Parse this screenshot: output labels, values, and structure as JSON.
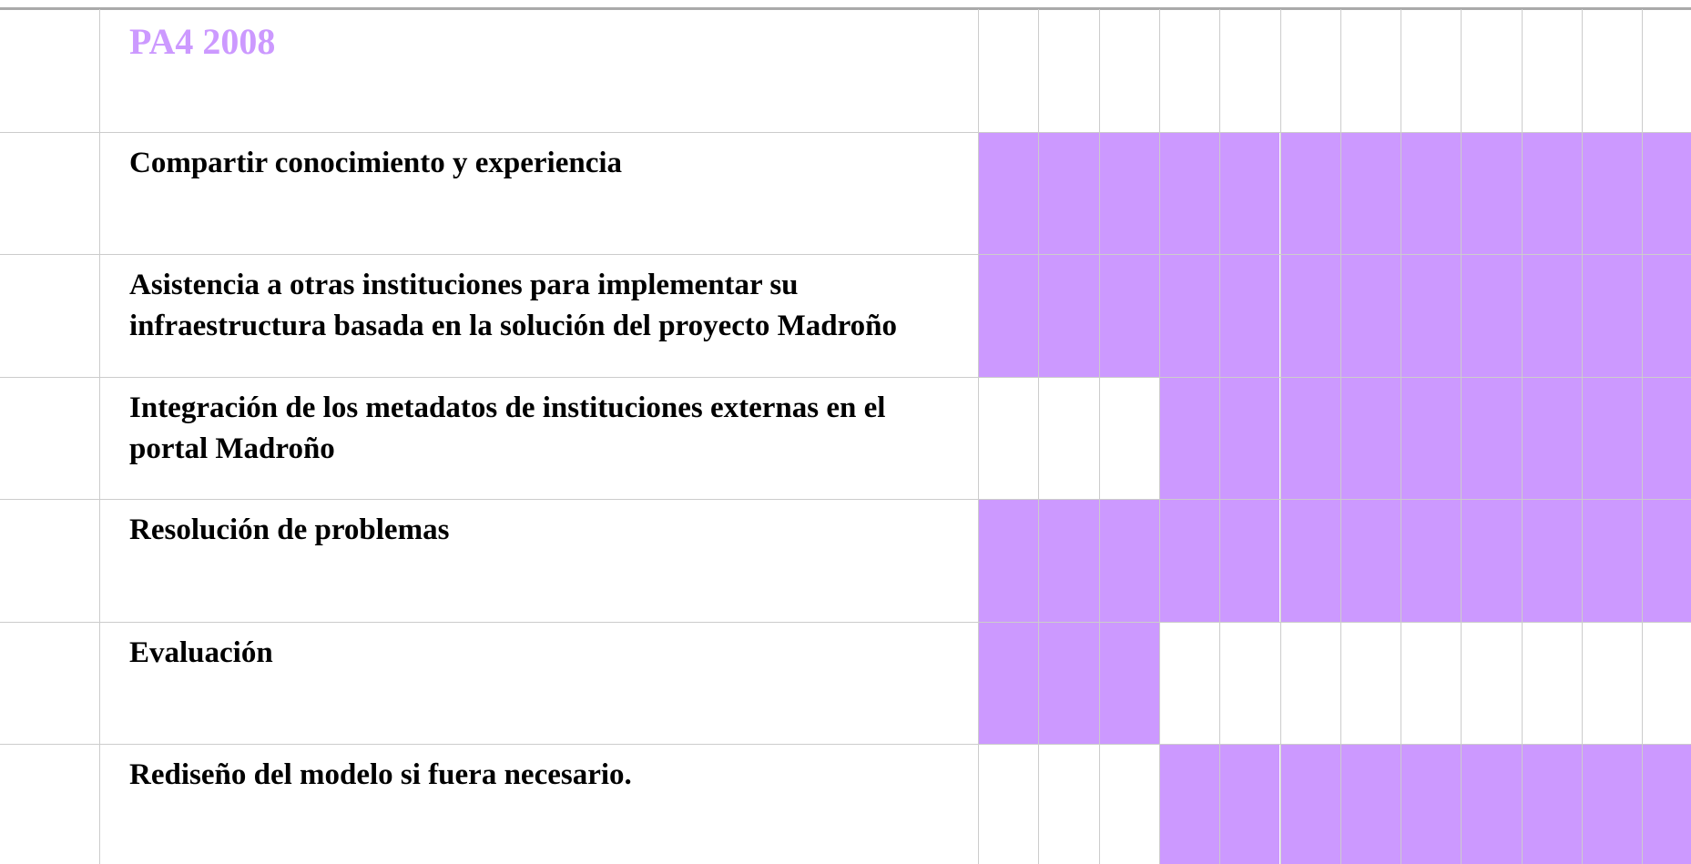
{
  "table": {
    "title": "PA4 2008",
    "title_color": "#cc99ff",
    "fill_color": "#cc99ff",
    "rows": [
      {
        "label": "Compartir conocimiento y experiencia",
        "cells": [
          true,
          true,
          true,
          true,
          true,
          true,
          true,
          true,
          true,
          true,
          true,
          true
        ]
      },
      {
        "label": "Asistencia a otras instituciones para implementar su infraestructura basada en la solución del proyecto Madroño",
        "cells": [
          true,
          true,
          true,
          true,
          true,
          true,
          true,
          true,
          true,
          true,
          true,
          true
        ]
      },
      {
        "label": "Integración de los metadatos de instituciones externas en el portal Madroño",
        "cells": [
          false,
          false,
          false,
          true,
          true,
          true,
          true,
          true,
          true,
          true,
          true,
          true
        ]
      },
      {
        "label": "Resolución de problemas",
        "cells": [
          true,
          true,
          true,
          true,
          true,
          true,
          true,
          true,
          true,
          true,
          true,
          true
        ]
      },
      {
        "label": "Evaluación",
        "cells": [
          true,
          true,
          true,
          false,
          false,
          false,
          false,
          false,
          false,
          false,
          false,
          false
        ]
      },
      {
        "label": "Rediseño del modelo si fuera necesario.",
        "cells": [
          false,
          false,
          false,
          true,
          true,
          true,
          true,
          true,
          true,
          true,
          true,
          true
        ]
      }
    ]
  }
}
